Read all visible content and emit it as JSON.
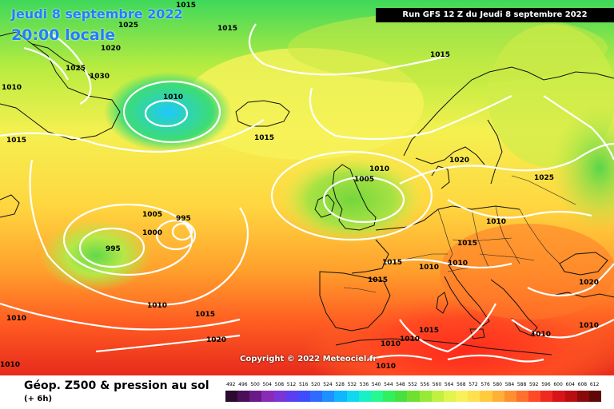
{
  "title": {
    "date": "Jeudi 8 septembre 2022",
    "time": "20:00 locale"
  },
  "run_label": "Run GFS 12 Z du Jeudi 8 septembre 2022",
  "copyright": "Copyright © 2022 Meteociel.fr",
  "product": {
    "name": "Géop. Z500 & pression au sol",
    "step": "(+ 6h)"
  },
  "legend": {
    "values": [
      492,
      496,
      500,
      504,
      508,
      512,
      516,
      520,
      524,
      528,
      532,
      536,
      540,
      544,
      548,
      552,
      556,
      560,
      564,
      568,
      572,
      576,
      580,
      584,
      588,
      592,
      596,
      600,
      604,
      608,
      612
    ],
    "colors": [
      "#2b0a2e",
      "#4a0f58",
      "#6a1a86",
      "#8a2bb8",
      "#7a35d8",
      "#5a3ef0",
      "#3d4cff",
      "#2e6cff",
      "#1e90ff",
      "#10b6ff",
      "#10d8f0",
      "#18f0c8",
      "#28f890",
      "#30f060",
      "#48e040",
      "#70e030",
      "#98e838",
      "#c0f040",
      "#e0f44c",
      "#f8f05a",
      "#ffe04e",
      "#ffcc3e",
      "#ffb036",
      "#ff9030",
      "#ff702c",
      "#ff4a26",
      "#f02a1e",
      "#d81418",
      "#b80e12",
      "#8a0a0c",
      "#600808"
    ]
  },
  "pressure_labels": [
    "1015",
    "1025",
    "1020",
    "1015",
    "1025",
    "1030",
    "1010",
    "1010",
    "1015",
    "1015",
    "1015",
    "1010",
    "1005",
    "1020",
    "1025",
    "1005",
    "1000",
    "995",
    "995",
    "1010",
    "1015",
    "1015",
    "1010",
    "1010",
    "1015",
    "1020",
    "1010",
    "1015",
    "1010",
    "1015",
    "1010",
    "1010",
    "1010",
    "1020",
    "1010",
    "1010"
  ],
  "features": {
    "coastline": "coastline",
    "borders": "borders",
    "isobars": "isobars"
  }
}
